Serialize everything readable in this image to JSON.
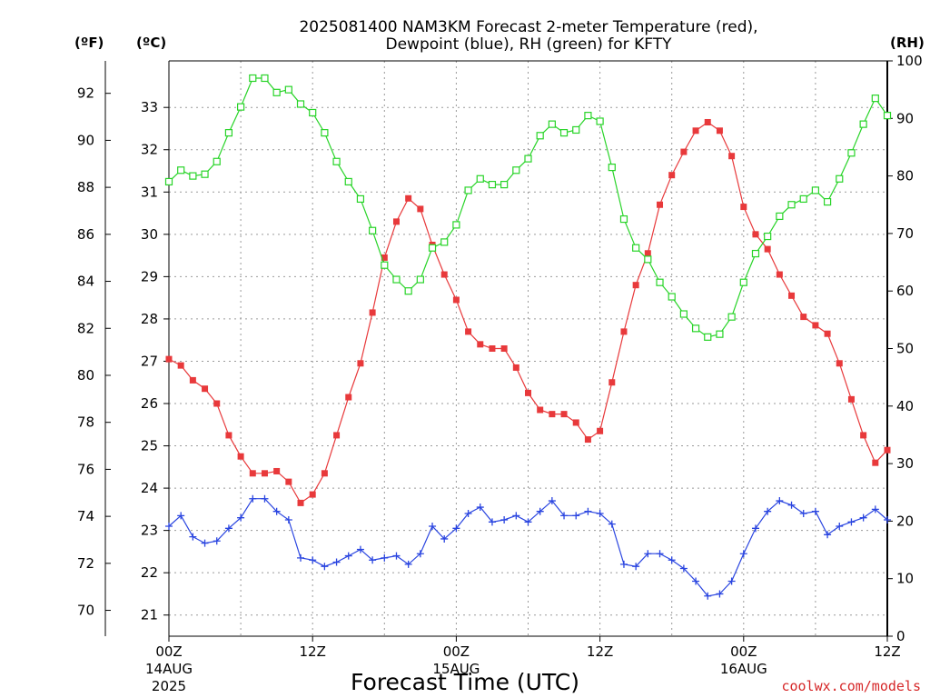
{
  "chart_data": {
    "type": "line",
    "title_lines": [
      "2025081400 NAM3KM Forecast 2-meter Temperature (red),",
      "Dewpoint (blue), RH (green) for KFTY"
    ],
    "xlabel": "Forecast Time (UTC)",
    "credit": "coolwx.com/models",
    "units": {
      "fahrenheit": "(ºF)",
      "celsius": "(ºC)",
      "rh": "(RH)"
    },
    "x_hours_range": [
      0,
      60
    ],
    "x_ticks": [
      {
        "hour": 0,
        "lines": [
          "00Z",
          "14AUG",
          "2025"
        ]
      },
      {
        "hour": 12,
        "lines": [
          "12Z"
        ]
      },
      {
        "hour": 24,
        "lines": [
          "00Z",
          "15AUG"
        ]
      },
      {
        "hour": 36,
        "lines": [
          "12Z"
        ]
      },
      {
        "hour": 48,
        "lines": [
          "00Z",
          "16AUG"
        ]
      },
      {
        "hour": 60,
        "lines": [
          "12Z"
        ]
      }
    ],
    "celsius_range": [
      20.5,
      34.1
    ],
    "celsius_ticks": [
      "21",
      "22",
      "23",
      "24",
      "25",
      "26",
      "27",
      "28",
      "29",
      "30",
      "31",
      "32",
      "33"
    ],
    "fahrenheit_ticks": [
      "70",
      "72",
      "74",
      "76",
      "78",
      "80",
      "82",
      "84",
      "86",
      "88",
      "90",
      "92"
    ],
    "rh_range": [
      0,
      100
    ],
    "rh_ticks": [
      "0",
      "10",
      "20",
      "30",
      "40",
      "50",
      "60",
      "70",
      "80",
      "90",
      "100"
    ],
    "grid": true,
    "colors": {
      "temperature": "#e8393b",
      "dewpoint": "#2a45e0",
      "rh": "#28d428"
    },
    "series": [
      {
        "name": "Temperature",
        "axis": "celsius",
        "marker": "filled-square",
        "x": [
          0,
          1,
          2,
          3,
          4,
          5,
          6,
          7,
          8,
          9,
          10,
          11,
          12,
          13,
          14,
          15,
          16,
          17,
          18,
          19,
          20,
          21,
          22,
          23,
          24,
          25,
          26,
          27,
          28,
          29,
          30,
          31,
          32,
          33,
          34,
          35,
          36,
          37,
          38,
          39,
          40,
          41,
          42,
          43,
          44,
          45,
          46,
          47,
          48,
          49,
          50,
          51,
          52,
          53,
          54,
          55,
          56,
          57,
          58,
          59,
          60
        ],
        "values": [
          27.05,
          26.9,
          26.55,
          26.35,
          26.0,
          25.25,
          24.75,
          24.35,
          24.35,
          24.4,
          24.15,
          23.65,
          23.85,
          24.35,
          25.25,
          26.15,
          26.95,
          28.15,
          29.45,
          30.3,
          30.85,
          30.6,
          29.75,
          29.05,
          28.45,
          27.7,
          27.4,
          27.3,
          27.3,
          26.85,
          26.25,
          25.85,
          25.75,
          25.75,
          25.55,
          25.15,
          25.35,
          26.5,
          27.7,
          28.8,
          29.55,
          30.7,
          31.4,
          31.95,
          32.45,
          32.65,
          32.45,
          31.85,
          30.65,
          30.0,
          29.65,
          29.05,
          28.55,
          28.05,
          27.85,
          27.65,
          26.95,
          26.1,
          25.25,
          24.6,
          24.9
        ]
      },
      {
        "name": "Dewpoint",
        "axis": "celsius",
        "marker": "plus",
        "x": [
          0,
          1,
          2,
          3,
          4,
          5,
          6,
          7,
          8,
          9,
          10,
          11,
          12,
          13,
          14,
          15,
          16,
          17,
          18,
          19,
          20,
          21,
          22,
          23,
          24,
          25,
          26,
          27,
          28,
          29,
          30,
          31,
          32,
          33,
          34,
          35,
          36,
          37,
          38,
          39,
          40,
          41,
          42,
          43,
          44,
          45,
          46,
          47,
          48,
          49,
          50,
          51,
          52,
          53,
          54,
          55,
          56,
          57,
          58,
          59,
          60
        ],
        "values": [
          23.1,
          23.35,
          22.85,
          22.7,
          22.75,
          23.05,
          23.3,
          23.75,
          23.75,
          23.45,
          23.25,
          22.35,
          22.3,
          22.15,
          22.25,
          22.4,
          22.55,
          22.3,
          22.35,
          22.4,
          22.2,
          22.45,
          23.1,
          22.8,
          23.05,
          23.4,
          23.55,
          23.2,
          23.25,
          23.35,
          23.2,
          23.45,
          23.7,
          23.35,
          23.35,
          23.45,
          23.4,
          23.15,
          22.2,
          22.15,
          22.45,
          22.45,
          22.3,
          22.1,
          21.8,
          21.45,
          21.5,
          21.8,
          22.45,
          23.05,
          23.45,
          23.7,
          23.6,
          23.4,
          23.45,
          22.9,
          23.1,
          23.2,
          23.3,
          23.5,
          23.25
        ]
      },
      {
        "name": "RH",
        "axis": "rh",
        "marker": "open-square",
        "x": [
          0,
          1,
          2,
          3,
          4,
          5,
          6,
          7,
          8,
          9,
          10,
          11,
          12,
          13,
          14,
          15,
          16,
          17,
          18,
          19,
          20,
          21,
          22,
          23,
          24,
          25,
          26,
          27,
          28,
          29,
          30,
          31,
          32,
          33,
          34,
          35,
          36,
          37,
          38,
          39,
          40,
          41,
          42,
          43,
          44,
          45,
          46,
          47,
          48,
          49,
          50,
          51,
          52,
          53,
          54,
          55,
          56,
          57,
          58,
          59,
          60
        ],
        "values": [
          79,
          81,
          80,
          80.3,
          82.5,
          87.5,
          92,
          97,
          97,
          94.5,
          95,
          92.5,
          91,
          87.5,
          82.5,
          79,
          76,
          70.5,
          64.5,
          62,
          60,
          62,
          67.5,
          68.5,
          71.5,
          77.5,
          79.5,
          78.5,
          78.5,
          81,
          83,
          87,
          89,
          87.5,
          88,
          90.5,
          89.5,
          81.5,
          72.5,
          67.5,
          65.5,
          61.5,
          59,
          56,
          53.5,
          52,
          52.5,
          55.5,
          61.5,
          66.5,
          69.5,
          73,
          75,
          76,
          77.5,
          75.5,
          79.5,
          84,
          89,
          93.5,
          90.5
        ]
      }
    ]
  }
}
